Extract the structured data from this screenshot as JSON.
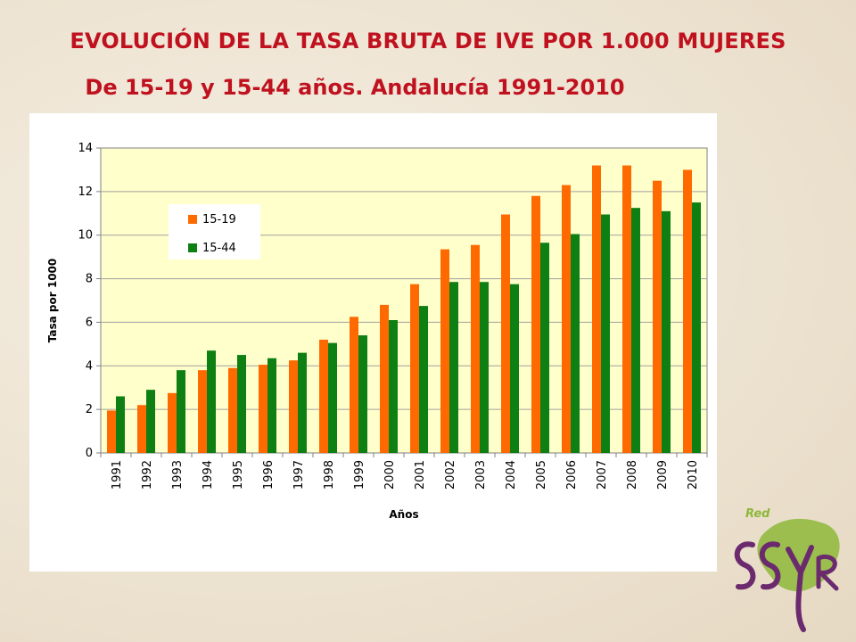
{
  "header": {
    "title": "EVOLUCIÓN DE LA TASA BRUTA DE IVE POR 1.000 MUJERES",
    "subtitle": "De 15-19 y 15-44 años. Andalucía 1991-2010"
  },
  "colors": {
    "series_15_19": "#ff6a00",
    "series_15_44": "#0e7f12",
    "plot_background": "#ffffcc",
    "title_red": "#c0111f",
    "logo_green": "#8db83a",
    "logo_purple": "#6b2a6e"
  },
  "logo": {
    "text": "Red SSyR",
    "icon": "red-ssyr-logo-icon"
  },
  "chart_data": {
    "type": "bar",
    "xlabel": "Años",
    "ylabel": "Tasa por 1000",
    "ylim": [
      0,
      14
    ],
    "yticks": [
      0,
      2,
      4,
      6,
      8,
      10,
      12,
      14
    ],
    "grid": true,
    "legend_position": "top-left",
    "categories": [
      "1991",
      "1992",
      "1993",
      "1994",
      "1995",
      "1996",
      "1997",
      "1998",
      "1999",
      "2000",
      "2001",
      "2002",
      "2003",
      "2004",
      "2005",
      "2006",
      "2007",
      "2008",
      "2009",
      "2010"
    ],
    "series": [
      {
        "name": "15-19",
        "values": [
          1.95,
          2.2,
          2.75,
          3.8,
          3.9,
          4.05,
          4.25,
          5.2,
          6.25,
          6.8,
          7.75,
          9.35,
          9.55,
          10.95,
          11.8,
          12.3,
          13.2,
          13.2,
          12.5,
          13.0
        ]
      },
      {
        "name": "15-44",
        "values": [
          2.6,
          2.9,
          3.8,
          4.7,
          4.5,
          4.35,
          4.6,
          5.05,
          5.4,
          6.1,
          6.75,
          7.85,
          7.85,
          7.75,
          9.65,
          10.05,
          10.95,
          11.25,
          11.1,
          11.5
        ]
      }
    ]
  }
}
